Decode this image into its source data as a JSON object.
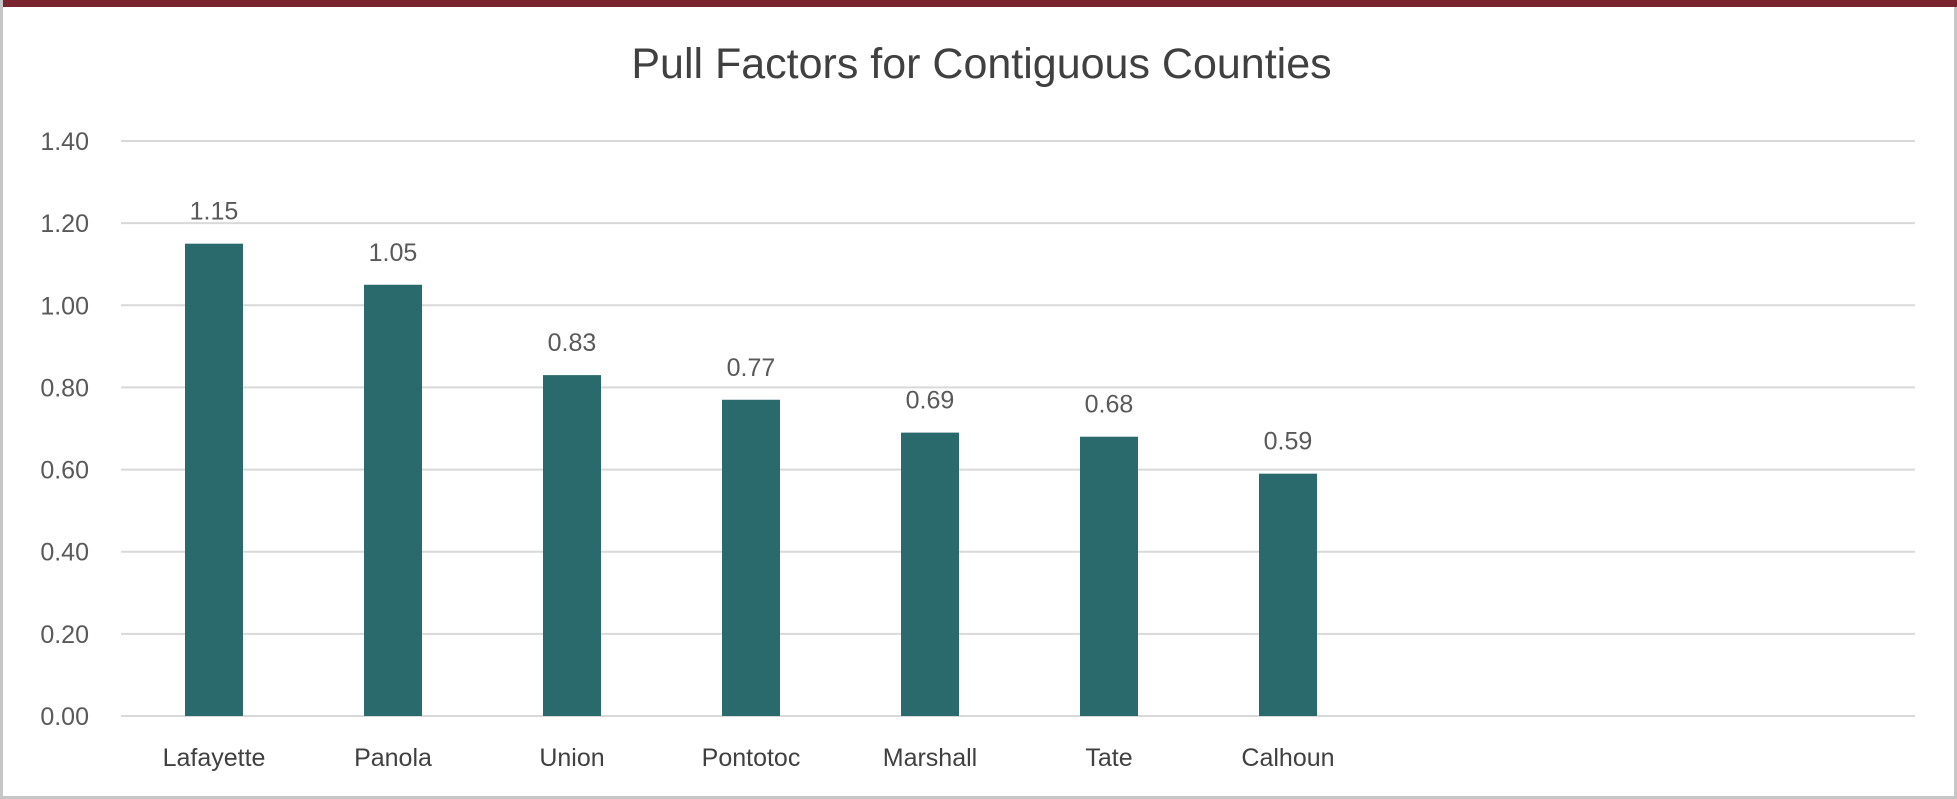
{
  "chart_data": {
    "type": "bar",
    "title": "Pull Factors for Contiguous Counties",
    "xlabel": "",
    "ylabel": "",
    "categories": [
      "Lafayette",
      "Panola",
      "Union",
      "Pontotoc",
      "Marshall",
      "Tate",
      "Calhoun"
    ],
    "values": [
      1.15,
      1.05,
      0.83,
      0.77,
      0.69,
      0.68,
      0.59
    ],
    "value_labels": [
      "1.15",
      "1.05",
      "0.83",
      "0.77",
      "0.69",
      "0.68",
      "0.59"
    ],
    "ylim": [
      0,
      1.4
    ],
    "yticks": [
      0,
      0.2,
      0.4,
      0.6,
      0.8,
      1.0,
      1.2,
      1.4
    ],
    "ytick_labels": [
      "0.00",
      "0.20",
      "0.40",
      "0.60",
      "0.80",
      "1.00",
      "1.20",
      "1.40"
    ],
    "grid": true,
    "legend": "none",
    "bar_color": "#2a6a6c",
    "grid_color": "#d9d9d9",
    "frame_accent_color": "#7a2430"
  }
}
